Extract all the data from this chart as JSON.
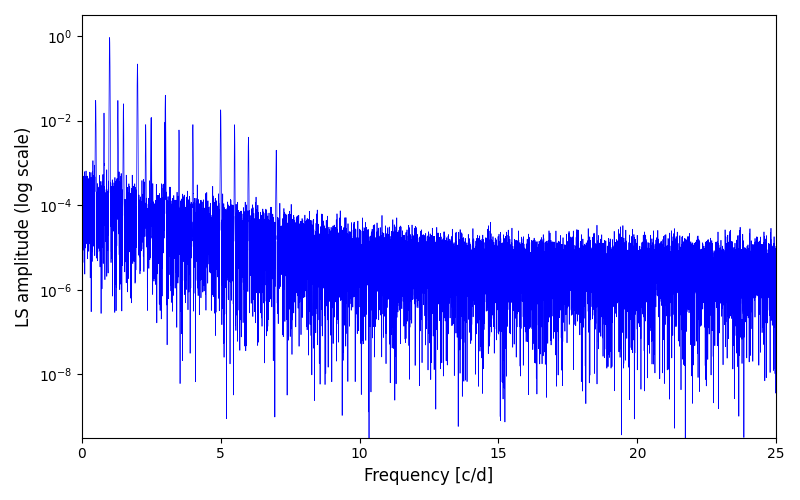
{
  "title": "",
  "xlabel": "Frequency [c/d]",
  "ylabel": "LS amplitude (log scale)",
  "xlim": [
    0,
    25
  ],
  "ylim_log": [
    -9.5,
    0.5
  ],
  "line_color": "#0000ff",
  "line_width": 0.5,
  "figsize": [
    8.0,
    5.0
  ],
  "dpi": 100,
  "background_color": "#ffffff",
  "yscale": "log",
  "freq_min": 0.0,
  "freq_max": 25.0,
  "n_points": 15000,
  "seed": 17
}
